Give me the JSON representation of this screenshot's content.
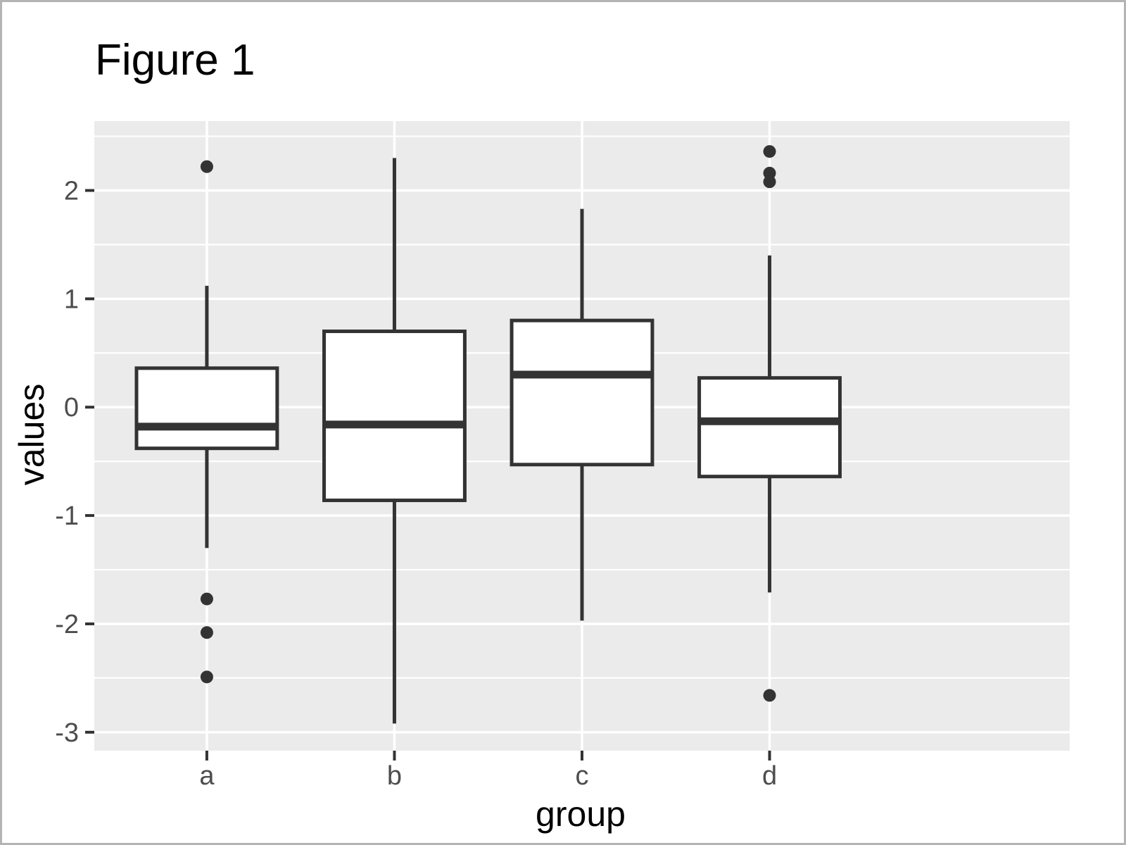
{
  "window": {
    "background": "#ffffff",
    "border_color": "#b4b4b4"
  },
  "chart_data": {
    "type": "boxplot",
    "title": "Figure 1",
    "xlabel": "group",
    "ylabel": "values",
    "categories": [
      "a",
      "b",
      "c",
      "d"
    ],
    "y_ticks": [
      2,
      1,
      0,
      -1,
      -2,
      -3
    ],
    "ylim": [
      -3.17,
      2.64
    ],
    "grid": "on",
    "legend": "none",
    "panel_bg": "#EBEBEB",
    "gridline_color": "#FFFFFF",
    "box_fill": "#FFFFFF",
    "box_stroke": "#333333",
    "median_color": "#333333",
    "whisker_color": "#333333",
    "outlier_color": "#333333",
    "tick_mark_color": "#333333",
    "tick_label_color": "#4D4D4D",
    "series": [
      {
        "group": "a",
        "whisker_low": -1.3,
        "q1": -0.38,
        "median": -0.18,
        "q3": 0.36,
        "whisker_high": 1.12,
        "outliers": [
          2.22,
          -1.77,
          -2.08,
          -2.49
        ]
      },
      {
        "group": "b",
        "whisker_low": -2.92,
        "q1": -0.86,
        "median": -0.16,
        "q3": 0.7,
        "whisker_high": 2.3,
        "outliers": []
      },
      {
        "group": "c",
        "whisker_low": -1.97,
        "q1": -0.53,
        "median": 0.3,
        "q3": 0.8,
        "whisker_high": 1.83,
        "outliers": []
      },
      {
        "group": "d",
        "whisker_low": -1.71,
        "q1": -0.64,
        "median": -0.13,
        "q3": 0.27,
        "whisker_high": 1.4,
        "outliers": [
          2.36,
          2.16,
          2.08,
          -2.66
        ]
      }
    ]
  }
}
